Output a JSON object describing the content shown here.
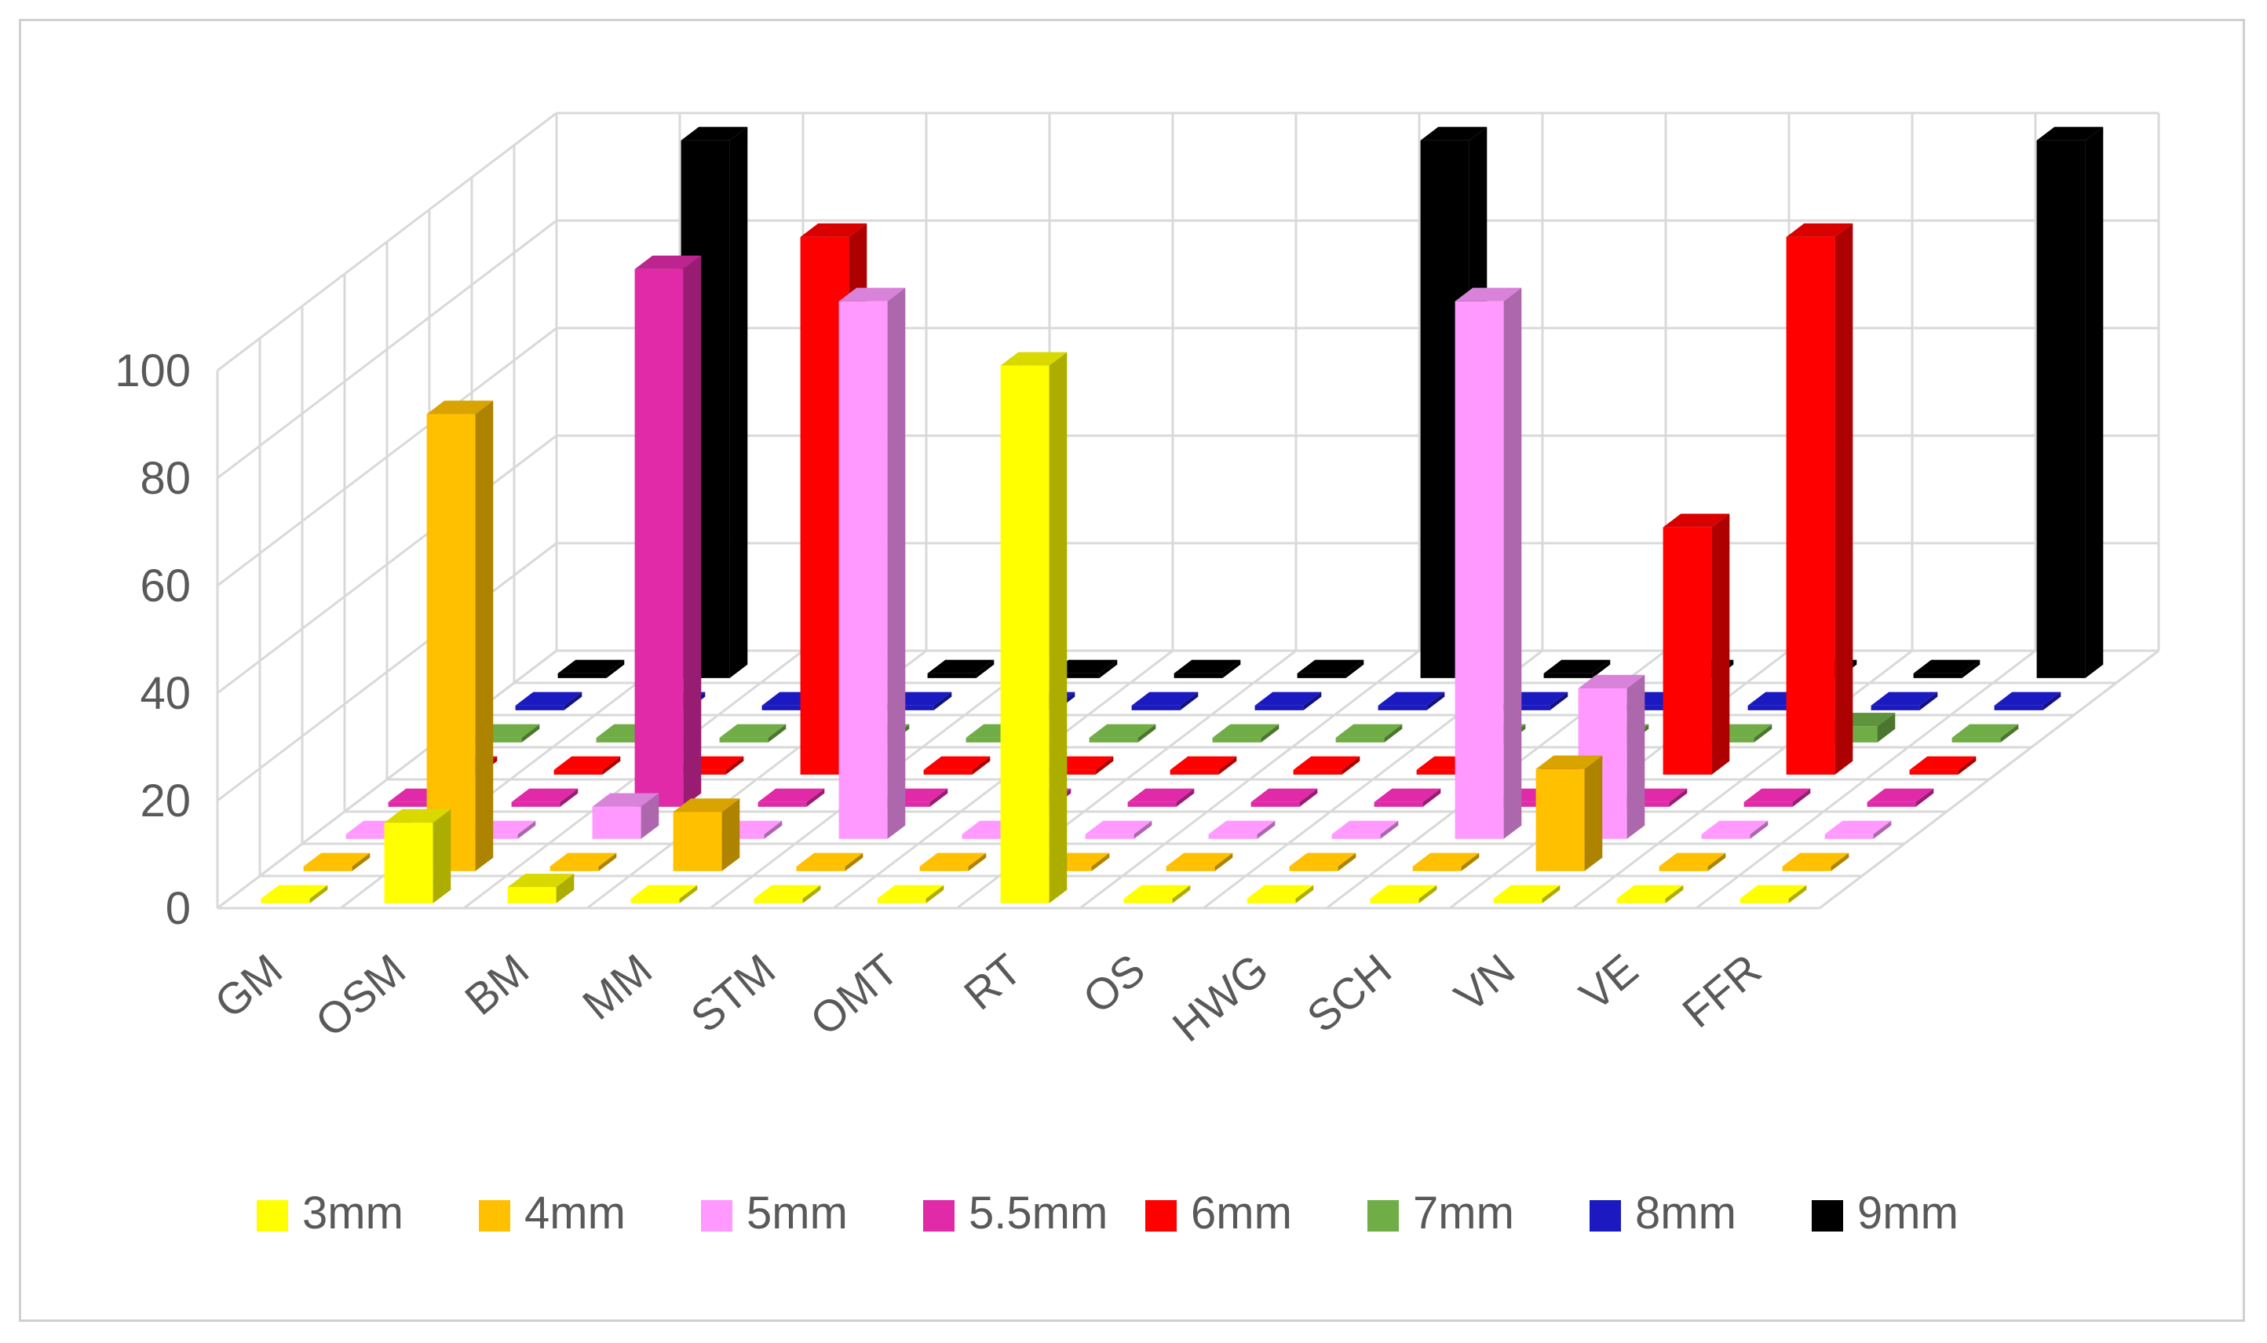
{
  "chart_data": {
    "type": "bar",
    "subtype": "3d-column",
    "title": "",
    "xlabel": "",
    "ylabel": "",
    "ylim": [
      0,
      100
    ],
    "yticks": [
      0,
      20,
      40,
      60,
      80,
      100
    ],
    "grid": true,
    "legend_position": "bottom",
    "categories": [
      "GM",
      "OSM",
      "BM",
      "MM",
      "STM",
      "OMT",
      "RT",
      "OS",
      "HWG",
      "SCH",
      "VN",
      "VE",
      "FFR"
    ],
    "series": [
      {
        "name": "3mm",
        "color": "#FFFF00",
        "values": [
          0,
          15,
          3,
          0,
          0,
          0,
          100,
          0,
          0,
          0,
          0,
          0,
          0
        ]
      },
      {
        "name": "4mm",
        "color": "#FFC000",
        "values": [
          0,
          85,
          0,
          11,
          0,
          0,
          0,
          0,
          0,
          0,
          19,
          0,
          0
        ]
      },
      {
        "name": "5mm",
        "color": "#FF99FF",
        "values": [
          0,
          0,
          6,
          0,
          100,
          0,
          0,
          0,
          0,
          100,
          28,
          0,
          0
        ]
      },
      {
        "name": "5.5mm",
        "color": "#E02AA8",
        "values": [
          0,
          0,
          100,
          0,
          0,
          0,
          0,
          0,
          0,
          0,
          0,
          0,
          0
        ]
      },
      {
        "name": "6mm",
        "color": "#FF0000",
        "values": [
          0,
          0,
          0,
          100,
          0,
          0,
          0,
          0,
          0,
          0,
          46,
          100,
          0
        ]
      },
      {
        "name": "7mm",
        "color": "#70AD47",
        "values": [
          0,
          0,
          0,
          0,
          0,
          0,
          0,
          0,
          0,
          0,
          0,
          3,
          0
        ]
      },
      {
        "name": "8mm",
        "color": "#1A1AC0",
        "values": [
          0,
          0,
          0,
          0,
          0,
          0,
          0,
          0,
          0,
          0,
          0,
          0,
          0
        ]
      },
      {
        "name": "9mm",
        "color": "#000000",
        "values": [
          0,
          100,
          0,
          0,
          0,
          0,
          0,
          100,
          0,
          0,
          0,
          0,
          100
        ]
      }
    ]
  }
}
